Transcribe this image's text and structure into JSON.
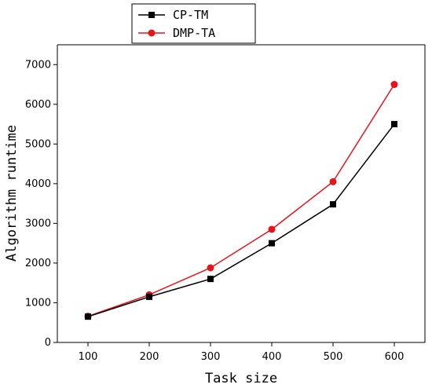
{
  "chart_data": {
    "type": "line",
    "xlabel": "Task size",
    "ylabel": "Algorithm runtime",
    "x": [
      100,
      200,
      300,
      400,
      500,
      600
    ],
    "xlim": [
      50,
      650
    ],
    "ylim": [
      0,
      7500
    ],
    "xticks": [
      100,
      200,
      300,
      400,
      500,
      600
    ],
    "yticks": [
      0,
      1000,
      2000,
      3000,
      4000,
      5000,
      6000,
      7000
    ],
    "grid": false,
    "legend_position": "top-left (outside, above plot)",
    "series": [
      {
        "name": "CP-TM",
        "color": "#000000",
        "marker": "square",
        "values": [
          650,
          1150,
          1600,
          2500,
          3480,
          5500
        ]
      },
      {
        "name": "DMP-TA",
        "color": "#e8141c",
        "marker": "circle",
        "values": [
          660,
          1200,
          1880,
          2850,
          4050,
          6500
        ]
      }
    ]
  }
}
